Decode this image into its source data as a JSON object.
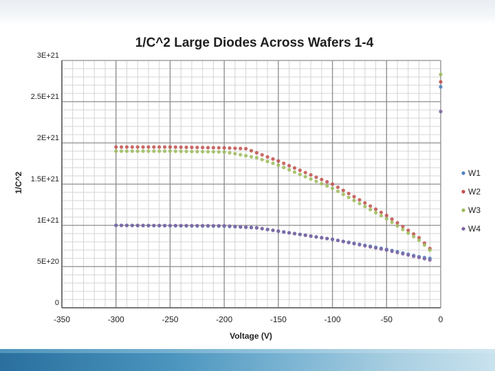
{
  "chart_data": {
    "type": "scatter",
    "title": "1/C^2 Large Diodes Across Wafers 1-4",
    "xlabel": "Voltage (V)",
    "ylabel": "1/C^2",
    "xlim": [
      -350,
      0
    ],
    "ylim": [
      0,
      3e+21
    ],
    "x_ticks": [
      -350,
      -300,
      -250,
      -200,
      -150,
      -100,
      -50,
      0
    ],
    "x_tick_labels": [
      "-350",
      "-300",
      "-250",
      "-200",
      "-150",
      "-100",
      "-50",
      "0"
    ],
    "y_ticks": [
      0,
      5e+20,
      1e+21,
      1.5e+21,
      2e+21,
      2.5e+21,
      3e+21
    ],
    "y_tick_labels": [
      "0",
      "5E+20",
      "1E+21",
      "1.5E+21",
      "2E+21",
      "2.5E+21",
      "3E+21"
    ],
    "grid": true,
    "legend_position": "right",
    "series": [
      {
        "name": "W1",
        "color": "#4f81bd",
        "points": [
          [
            -300,
            1e+21
          ],
          [
            -200,
            9.9e+20
          ],
          [
            -170,
            9.7e+20
          ],
          [
            -150,
            9.3e+20
          ],
          [
            -100,
            8.3e+20
          ],
          [
            -50,
            7.1e+20
          ],
          [
            -20,
            6.2e+20
          ],
          [
            -10,
            6e+20
          ],
          [
            0,
            2.68e+21
          ]
        ]
      },
      {
        "name": "W2",
        "color": "#c0504d",
        "points": [
          [
            -300,
            1.95e+21
          ],
          [
            -250,
            1.95e+21
          ],
          [
            -200,
            1.94e+21
          ],
          [
            -180,
            1.93e+21
          ],
          [
            -170,
            1.88e+21
          ],
          [
            -150,
            1.78e+21
          ],
          [
            -100,
            1.5e+21
          ],
          [
            -50,
            1.12e+21
          ],
          [
            -20,
            8.5e+20
          ],
          [
            -10,
            7.2e+20
          ],
          [
            0,
            2.74e+21
          ]
        ]
      },
      {
        "name": "W3",
        "color": "#9bbb59",
        "points": [
          [
            -300,
            1.9e+21
          ],
          [
            -250,
            1.9e+21
          ],
          [
            -200,
            1.89e+21
          ],
          [
            -190,
            1.87e+21
          ],
          [
            -170,
            1.82e+21
          ],
          [
            -150,
            1.73e+21
          ],
          [
            -100,
            1.45e+21
          ],
          [
            -50,
            1.08e+21
          ],
          [
            -20,
            8.2e+20
          ],
          [
            -10,
            7e+20
          ],
          [
            0,
            2.83e+21
          ]
        ]
      },
      {
        "name": "W4",
        "color": "#8064a2",
        "points": [
          [
            -300,
            1e+21
          ],
          [
            -200,
            9.95e+20
          ],
          [
            -170,
            9.7e+20
          ],
          [
            -150,
            9.3e+20
          ],
          [
            -100,
            8.3e+20
          ],
          [
            -50,
            7e+20
          ],
          [
            -20,
            6.1e+20
          ],
          [
            -10,
            5.8e+20
          ],
          [
            0,
            2.38e+21
          ]
        ]
      }
    ]
  }
}
